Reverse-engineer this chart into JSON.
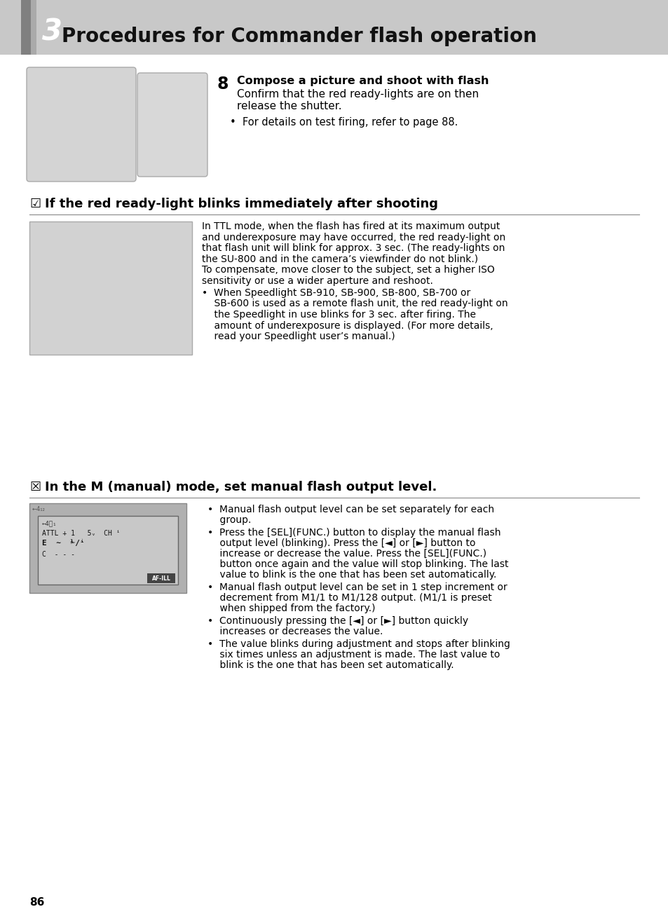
{
  "bg_color": "#ffffff",
  "header_bg": "#c0c0c0",
  "header_number": "3",
  "header_title": "Procedures for Commander flash operation",
  "section8_number": "8",
  "section8_bold": "Compose a picture and shoot with flash",
  "section8_line2": "Confirm that the red ready-lights are on then",
  "section8_line3": "release the shutter.",
  "section8_bullet": "•  For details on test firing, refer to page 88.",
  "section_blink_icon": "☑",
  "section_blink_title": "If the red ready-light blinks immediately after shooting",
  "blink_text_lines": [
    "In TTL mode, when the flash has fired at its maximum output",
    "and underexposure may have occurred, the red ready-light on",
    "that flash unit will blink for approx. 3 sec. (The ready-lights on",
    "the SU-800 and in the camera’s viewfinder do not blink.)",
    "To compensate, move closer to the subject, set a higher ISO",
    "sensitivity or use a wider aperture and reshoot."
  ],
  "blink_bullet_lines": [
    "•  When Speedlight SB-910, SB-900, SB-800, SB-700 or",
    "    SB-600 is used as a remote flash unit, the red ready-light on",
    "    the Speedlight in use blinks for 3 sec. after firing. The",
    "    amount of underexposure is displayed. (For more details,",
    "    read your Speedlight user’s manual.)"
  ],
  "section_manual_icon": "☒",
  "section_manual_title": "In the M (manual) mode, set manual flash output level.",
  "manual_bullet_groups": [
    [
      "Manual flash output level can be set separately for each",
      "group."
    ],
    [
      "Press the [SEL](FUNC.) button to display the manual flash",
      "output level (blinking). Press the [◄] or [►] button to",
      "increase or decrease the value. Press the [SEL](FUNC.)",
      "button once again and the value will stop blinking. The last",
      "value to blink is the one that has been set automatically."
    ],
    [
      "Manual flash output level can be set in 1 step increment or",
      "decrement from M1/1 to M1/128 output. (M1/1 is preset",
      "when shipped from the factory.)"
    ],
    [
      "Continuously pressing the [◄] or [►] button quickly",
      "increases or decreases the value."
    ],
    [
      "The value blinks during adjustment and stops after blinking",
      "six times unless an adjustment is made. The last value to",
      "blink is the one that has been set automatically."
    ]
  ],
  "page_number": "86",
  "text_color": "#000000",
  "divider_color": "#555555"
}
